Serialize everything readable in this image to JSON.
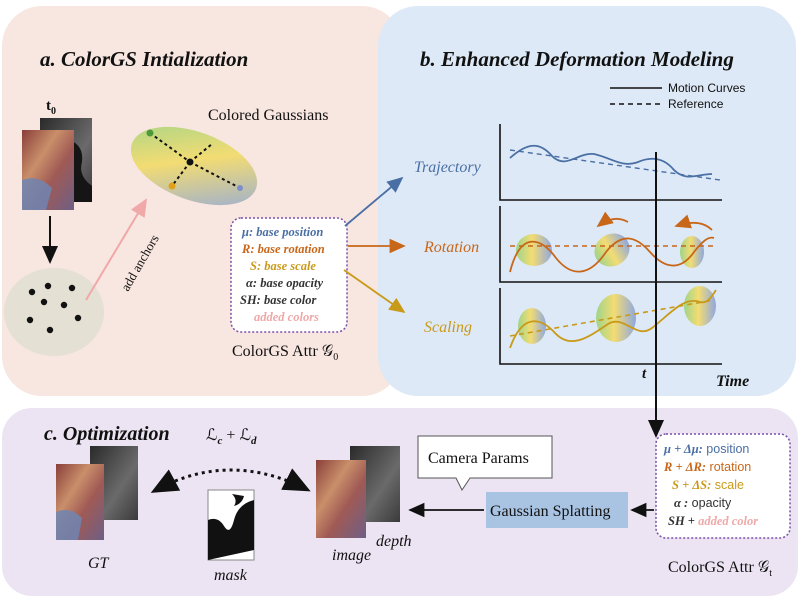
{
  "panels": {
    "a_title": "a. ColorGS Intialization",
    "b_title": "b. Enhanced Deformation Modeling",
    "c_title": "c. Optimization"
  },
  "panel_a": {
    "t0_label": "t",
    "t0_sub": "0",
    "colored_gaussians_label": "Colored Gaussians",
    "add_anchors_label": "add anchors",
    "attrs": [
      {
        "sym": "μ:",
        "text": " base position",
        "color": "#4a6fa5"
      },
      {
        "sym": "R:",
        "text": " base rotation",
        "color": "#c8671a"
      },
      {
        "sym": "S:",
        "text": " base scale",
        "color": "#c99a1a"
      },
      {
        "sym": "α:",
        "text": " base opacity",
        "color": "#333333"
      },
      {
        "sym": "SH:",
        "text": " base color",
        "color": "#333333"
      },
      {
        "sym": "",
        "text": "added colors",
        "color": "#f0a8a8"
      }
    ],
    "attr_caption": "ColorGS Attr 𝒢",
    "attr_caption_sub": "0"
  },
  "panel_b": {
    "legend": {
      "solid": "Motion Curves",
      "dashed": "Reference"
    },
    "row_labels": [
      {
        "text": "Trajectory",
        "color": "#4a6fa5"
      },
      {
        "text": "Rotation",
        "color": "#c8671a"
      },
      {
        "text": "Scaling",
        "color": "#c99a1a"
      }
    ],
    "t_label": "t",
    "time_label": "Time"
  },
  "panel_c": {
    "loss_main": "ℒ",
    "loss_c": "c",
    "loss_plus": " + ℒ",
    "loss_d": "d",
    "gt_label": "GT",
    "mask_label": "mask",
    "image_label": "image",
    "depth_label": "depth",
    "camera_params": "Camera Params",
    "gaussian_splatting": "Gaussian Splatting",
    "attrs_t": [
      {
        "sym": "μ + Δμ:",
        "text": "  position",
        "color": "#4a6fa5"
      },
      {
        "sym": "R + ΔR:",
        "text": "  rotation",
        "color": "#c8671a"
      },
      {
        "sym": "S + ΔS:",
        "text": "  scale",
        "color": "#c99a1a"
      },
      {
        "sym": "α :",
        "text": "  opacity",
        "color": "#333333"
      },
      {
        "sym": "SH +",
        "text": " added color",
        "color": "#333333",
        "text_color": "#f0a8a8"
      }
    ],
    "attr_t_caption": "ColorGS Attr 𝒢",
    "attr_t_caption_sub": "t"
  },
  "colors": {
    "panel_a_bg": "#f8e6e0",
    "panel_b_bg": "#dde9f6",
    "panel_c_bg": "#ece4f3",
    "blue": "#4a6fa5",
    "orange": "#c8671a",
    "gold": "#c99a1a",
    "pink": "#f0a8a8",
    "purple_dots": "#7a4fa8",
    "splat_box": "#a9c3e2"
  }
}
